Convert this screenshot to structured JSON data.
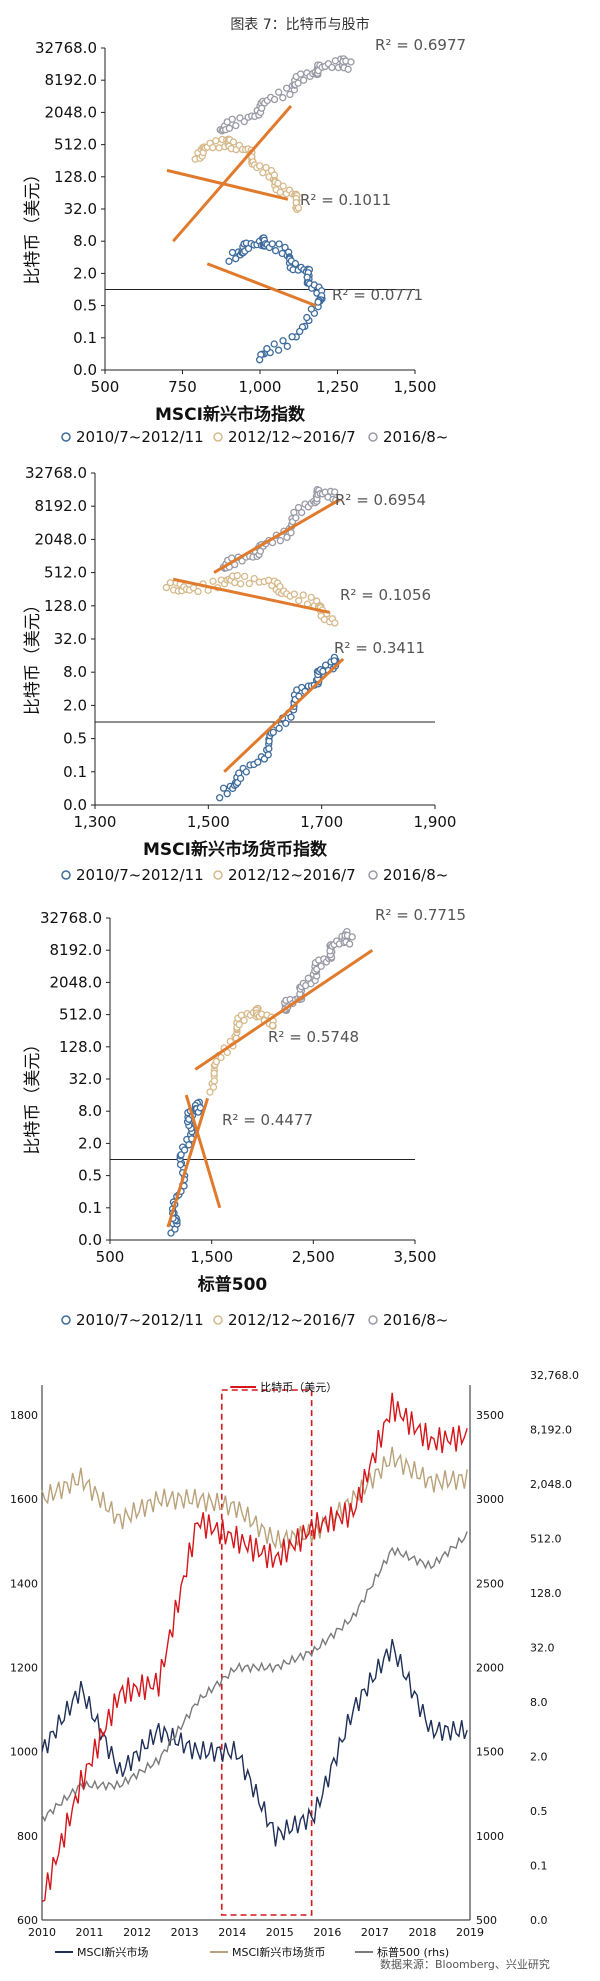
{
  "figure_title": "图表 7：比特币与股市",
  "source_note": "数据来源：Bloomberg、兴业研究",
  "colors": {
    "series_2010": "#3d6b9c",
    "series_2012": "#d6b98a",
    "series_2016": "#9a9aa6",
    "trend": "#e07a2c",
    "axis": "#222222",
    "grid": "#bdbdbd",
    "line_btc": "#d4161b",
    "line_msci": "#1f2f57",
    "line_msci_currency": "#b9a27a",
    "line_sp500": "#7a7a7a",
    "dash_box": "#d4161b"
  },
  "legend": {
    "s1": "2010/7~2012/11",
    "s2": "2012/12~2016/7",
    "s3": "2016/8~"
  },
  "chart_data": [
    {
      "type": "scatter",
      "xlabel": "MSCI新兴市场指数",
      "ylabel": "比特币（美元）",
      "y_scale": "log2",
      "y_ticks": [
        "32768.0",
        "8192.0",
        "2048.0",
        "512.0",
        "128.0",
        "32.0",
        "8.0",
        "2.0",
        "0.5",
        "0.1",
        "0.0"
      ],
      "x_ticks": [
        "500",
        "750",
        "1,000",
        "1,250",
        "1,500"
      ],
      "xlim": [
        500,
        1500
      ],
      "series": [
        {
          "name": "2010/7~2012/11",
          "x": [
            900,
            960,
            1000,
            1060,
            1110,
            1150,
            1180,
            1200,
            1080,
            990
          ],
          "y": [
            4,
            6,
            8,
            6,
            3,
            2,
            1,
            0.5,
            0.1,
            0.05
          ]
        },
        {
          "name": "2012/12~2016/7",
          "x": [
            780,
            850,
            900,
            950,
            1000,
            1050,
            1100,
            1140
          ],
          "y": [
            300,
            500,
            600,
            400,
            200,
            100,
            60,
            30
          ]
        },
        {
          "name": "2016/8~",
          "x": [
            860,
            950,
            1020,
            1100,
            1150,
            1200,
            1260,
            1300
          ],
          "y": [
            900,
            1500,
            3000,
            6000,
            10000,
            14000,
            18000,
            15000
          ]
        }
      ],
      "trendlines": [
        {
          "label": "R² = 0.6977"
        },
        {
          "label": "R² = 0.1011"
        },
        {
          "label": "R² = 0.0771"
        }
      ]
    },
    {
      "type": "scatter",
      "xlabel": "MSCI新兴市场货币指数",
      "ylabel": "比特币（美元）",
      "y_scale": "log2",
      "y_ticks": [
        "32768.0",
        "8192.0",
        "2048.0",
        "512.0",
        "128.0",
        "32.0",
        "8.0",
        "2.0",
        "0.5",
        "0.1",
        "0.0"
      ],
      "x_ticks": [
        "1,300",
        "1,500",
        "1,700",
        "1,900"
      ],
      "xlim": [
        1300,
        1900
      ],
      "series": [
        {
          "name": "2010/7~2012/11",
          "x": [
            1520,
            1560,
            1600,
            1630,
            1660,
            1690,
            1710,
            1730
          ],
          "y": [
            0.05,
            0.1,
            0.3,
            1,
            3,
            6,
            10,
            15
          ]
        },
        {
          "name": "2012/12~2016/7",
          "x": [
            1420,
            1480,
            1540,
            1600,
            1650,
            1700,
            1720
          ],
          "y": [
            300,
            250,
            400,
            350,
            200,
            120,
            60
          ]
        },
        {
          "name": "2016/8~",
          "x": [
            1520,
            1560,
            1600,
            1640,
            1670,
            1700,
            1720
          ],
          "y": [
            600,
            900,
            1500,
            3000,
            8000,
            15000,
            12000
          ]
        }
      ],
      "trendlines": [
        {
          "label": "R² = 0.6954"
        },
        {
          "label": "R² = 0.1056"
        },
        {
          "label": "R² = 0.3411"
        }
      ]
    },
    {
      "type": "scatter",
      "xlabel": "标普500",
      "ylabel": "比特币（美元）",
      "y_scale": "log2",
      "y_ticks": [
        "32768.0",
        "8192.0",
        "2048.0",
        "512.0",
        "128.0",
        "32.0",
        "8.0",
        "2.0",
        "0.5",
        "0.1",
        "0.0"
      ],
      "x_ticks": [
        "500",
        "1,500",
        "2,500",
        "3,500"
      ],
      "xlim": [
        500,
        3500
      ],
      "series": [
        {
          "name": "2010/7~2012/11",
          "x": [
            1100,
            1150,
            1200,
            1250,
            1300,
            1350,
            1400
          ],
          "y": [
            0.05,
            0.1,
            0.5,
            2,
            6,
            10,
            8
          ]
        },
        {
          "name": "2012/12~2016/7",
          "x": [
            1450,
            1600,
            1750,
            1900,
            2000,
            2100
          ],
          "y": [
            20,
            80,
            300,
            600,
            500,
            300
          ]
        },
        {
          "name": "2016/8~",
          "x": [
            2200,
            2300,
            2400,
            2500,
            2600,
            2700,
            2800,
            2900
          ],
          "y": [
            600,
            900,
            1500,
            3000,
            5000,
            9000,
            16000,
            12000
          ]
        }
      ],
      "trendlines": [
        {
          "label": "R² = 0.7715"
        },
        {
          "label": "R² = 0.5748"
        },
        {
          "label": "R² = 0.4477"
        }
      ]
    },
    {
      "type": "line",
      "x_ticks": [
        "2010",
        "2011",
        "2012",
        "2013",
        "2014",
        "2015",
        "2016",
        "2017",
        "2018",
        "2019"
      ],
      "y_left_ticks": [
        "1800",
        "1600",
        "1400",
        "1200",
        "1000",
        "800",
        "600"
      ],
      "y_mid_ticks": [
        "3500",
        "3000",
        "2500",
        "2000",
        "1500",
        "1000",
        "500"
      ],
      "y_right_ticks": [
        "32,768.0",
        "8,192.0",
        "2,048.0",
        "512.0",
        "128.0",
        "32.0",
        "8.0",
        "2.0",
        "0.5",
        "0.1",
        "0.0"
      ],
      "legend_top": "比特币（美元）",
      "series": [
        {
          "name": "MSCI新兴市场",
          "axis": "left",
          "values": [
            1000,
            1150,
            950,
            1050,
            1000,
            1000,
            800,
            850,
            1100,
            1250,
            1050,
            1050
          ]
        },
        {
          "name": "MSCI新兴市场货币",
          "axis": "left",
          "values": [
            1600,
            1650,
            1550,
            1600,
            1600,
            1580,
            1500,
            1520,
            1600,
            1700,
            1640,
            1650
          ]
        },
        {
          "name": "标普500 (rhs)",
          "axis": "mid",
          "values": [
            1100,
            1300,
            1300,
            1450,
            1800,
            2000,
            2000,
            2100,
            2300,
            2700,
            2600,
            2800
          ]
        },
        {
          "name": "比特币（美元）",
          "axis": "right_log2",
          "values": [
            0.05,
            1,
            10,
            13,
            800,
            500,
            300,
            700,
            1000,
            15000,
            6000,
            7000
          ]
        }
      ],
      "legend_bottom": [
        "MSCI新兴市场",
        "MSCI新兴市场货币",
        "标普500 (rhs)"
      ]
    }
  ]
}
